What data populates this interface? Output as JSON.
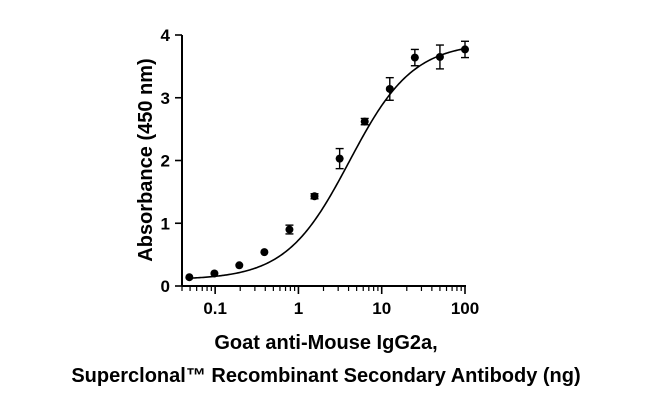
{
  "chart_data": {
    "type": "scatter",
    "title": "",
    "xlabel_lines": [
      "Goat anti-Mouse IgG2a,",
      "Superclonal™ Recombinant Secondary Antibody (ng)"
    ],
    "ylabel": "Absorbance (450 nm)",
    "xscale": "log",
    "xlim": [
      0.04,
      100
    ],
    "ylim": [
      0,
      4
    ],
    "xticks": [
      0.1,
      1,
      10,
      100
    ],
    "xtick_labels": [
      "0.1",
      "1",
      "10",
      "100"
    ],
    "yticks": [
      0,
      1,
      2,
      3,
      4
    ],
    "ytick_labels": [
      "0",
      "1",
      "2",
      "3",
      "4"
    ],
    "grid": false,
    "fit": "sigmoidal (4PL)",
    "fit_params": {
      "bottom": 0.1,
      "top": 3.88,
      "ec50": 4.1,
      "hill": 1.14
    },
    "series": [
      {
        "name": "Goat anti-Mouse IgG2a, Superclonal Recombinant Secondary Antibody",
        "color": "#000000",
        "x": [
          0.049,
          0.098,
          0.195,
          0.39,
          0.78,
          1.56,
          3.125,
          6.25,
          12.5,
          25,
          50,
          100
        ],
        "y": [
          0.14,
          0.2,
          0.33,
          0.54,
          0.9,
          1.43,
          2.03,
          2.62,
          3.14,
          3.64,
          3.65,
          3.77
        ],
        "error": [
          0.02,
          0.02,
          0.03,
          0.03,
          0.07,
          0.04,
          0.16,
          0.05,
          0.18,
          0.13,
          0.19,
          0.13
        ]
      }
    ]
  }
}
